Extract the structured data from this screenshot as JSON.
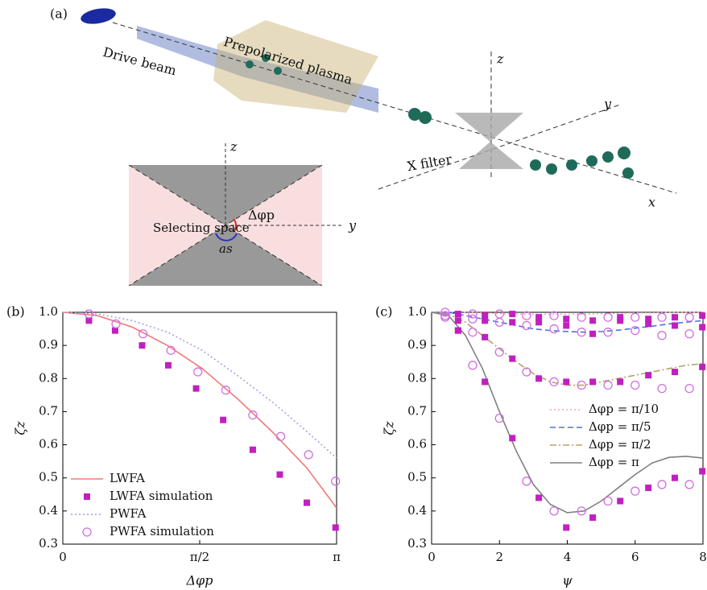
{
  "diagram": {
    "panel": "(a)",
    "plasma": "Prepolarized plasma",
    "beam": "Drive beam",
    "filter": "X filter",
    "axis_z": "z",
    "axis_y": "y",
    "axis_x": "x",
    "inset_z": "z",
    "inset_y": "y",
    "space": "Selecting space",
    "angle": "Δφp",
    "as": "as"
  },
  "chart_data": [
    {
      "type": "line",
      "panel": "(b)",
      "xlabel": "Δφp",
      "ylabel": "ζz",
      "legend": "lower left",
      "xlim": [
        0,
        3.1416
      ],
      "xticks": [
        0,
        {
          "value": 1.5708,
          "label": "π/2"
        },
        {
          "value": 3.1416,
          "label": "π"
        }
      ],
      "ylim": [
        0.3,
        1.0
      ],
      "yticks": [
        0.3,
        0.4,
        0.5,
        0.6,
        0.7,
        0.8,
        0.9,
        {
          "value": 1.0,
          "label": "1.0"
        }
      ],
      "series": [
        {
          "name": "LWFA",
          "color": "#f07878",
          "style": "solid",
          "x": [
            0,
            0.4,
            0.8,
            1.2,
            1.6,
            2.0,
            2.4,
            2.8,
            3.14
          ],
          "values": [
            1.0,
            0.99,
            0.955,
            0.9,
            0.83,
            0.74,
            0.64,
            0.53,
            0.41
          ]
        },
        {
          "name": "LWFA simulation",
          "color": "#c020c0",
          "marker": "square",
          "x": [
            0.3,
            0.6,
            0.91,
            1.21,
            1.53,
            1.84,
            2.18,
            2.49,
            2.8,
            3.13
          ],
          "values": [
            0.975,
            0.945,
            0.9,
            0.84,
            0.77,
            0.675,
            0.585,
            0.51,
            0.425,
            0.35
          ]
        },
        {
          "name": "PWFA",
          "color": "#a0a4e4",
          "style": "dotted",
          "x": [
            0,
            0.4,
            0.8,
            1.2,
            1.6,
            2.0,
            2.4,
            2.8,
            3.14
          ],
          "values": [
            1.0,
            0.995,
            0.975,
            0.94,
            0.885,
            0.81,
            0.73,
            0.64,
            0.56
          ]
        },
        {
          "name": "PWFA simulation",
          "color": "#d070e0",
          "marker": "circle",
          "x": [
            0.3,
            0.61,
            0.92,
            1.24,
            1.55,
            1.87,
            2.18,
            2.5,
            2.82,
            3.13
          ],
          "values": [
            0.995,
            0.965,
            0.935,
            0.885,
            0.82,
            0.765,
            0.69,
            0.625,
            0.57,
            0.49
          ]
        }
      ]
    },
    {
      "type": "line",
      "panel": "(c)",
      "xlabel": "ψ",
      "ylabel": "ζz",
      "legend": "center right",
      "xlim": [
        0,
        8
      ],
      "xticks": [
        0,
        2,
        4,
        6,
        8
      ],
      "ylim": [
        0.3,
        1.0
      ],
      "yticks": [
        0.3,
        0.4,
        0.5,
        0.6,
        0.7,
        0.8,
        0.9,
        {
          "value": 1.0,
          "label": "1.0"
        }
      ],
      "series": [
        {
          "name": "Δφp = π/10",
          "color": "#f0a8b8",
          "style": "dotted",
          "x": [
            0,
            0.5,
            1,
            1.5,
            2,
            2.5,
            3,
            3.5,
            4,
            4.5,
            5,
            5.5,
            6,
            6.5,
            7,
            7.5,
            8
          ],
          "values": [
            1,
            1,
            0.999,
            0.998,
            0.996,
            0.995,
            0.994,
            0.994,
            0.994,
            0.995,
            0.996,
            0.997,
            0.998,
            0.998,
            0.999,
            0.999,
            0.999
          ]
        },
        {
          "name": "Δφp = π/5",
          "color": "#5070e0",
          "style": "dashed",
          "x": [
            0,
            0.5,
            1,
            1.5,
            2,
            2.5,
            3,
            3.5,
            4,
            4.5,
            5,
            5.5,
            6,
            6.5,
            7,
            7.5,
            8
          ],
          "values": [
            1,
            1,
            0.99,
            0.98,
            0.97,
            0.96,
            0.95,
            0.945,
            0.942,
            0.94,
            0.942,
            0.946,
            0.952,
            0.958,
            0.965,
            0.97,
            0.975
          ]
        },
        {
          "name": "Δφp = π/2",
          "color": "#b8a070",
          "style": "dashdot",
          "x": [
            0,
            0.5,
            1,
            1.5,
            2,
            2.5,
            3,
            3.5,
            4,
            4.5,
            5,
            5.5,
            6,
            6.5,
            7,
            7.5,
            8
          ],
          "values": [
            1,
            0.995,
            0.97,
            0.93,
            0.89,
            0.85,
            0.815,
            0.79,
            0.78,
            0.78,
            0.79,
            0.8,
            0.81,
            0.82,
            0.83,
            0.84,
            0.845
          ]
        },
        {
          "name": "Δφp = π",
          "color": "#808080",
          "style": "solid",
          "x": [
            0,
            0.5,
            1,
            1.5,
            2,
            2.5,
            3,
            3.5,
            4,
            4.5,
            5,
            5.5,
            6,
            6.5,
            7,
            7.5,
            8
          ],
          "values": [
            1,
            0.99,
            0.93,
            0.83,
            0.7,
            0.58,
            0.48,
            0.42,
            0.395,
            0.4,
            0.43,
            0.47,
            0.51,
            0.545,
            0.562,
            0.565,
            0.56
          ]
        },
        {
          "color": "#c020c0",
          "marker": "square",
          "x": [
            0.78,
            1.57,
            2.38,
            3.16,
            3.97,
            4.75,
            5.56,
            6.39,
            7.17,
            7.98,
            0.78,
            1.57,
            2.38,
            3.16,
            3.97,
            4.75,
            5.56,
            6.39,
            7.17,
            7.98,
            0.78,
            1.57,
            2.38,
            3.16,
            3.97,
            4.75,
            5.56,
            6.39,
            7.17,
            7.98,
            0.78,
            1.57,
            2.38,
            3.16,
            3.97,
            4.75,
            5.56,
            6.39,
            7.17,
            7.98
          ],
          "values": [
            0.995,
            0.99,
            0.995,
            0.985,
            0.98,
            0.975,
            0.975,
            0.98,
            0.985,
            0.99,
            0.975,
            0.975,
            0.97,
            0.97,
            0.96,
            0.935,
            0.985,
            0.965,
            0.96,
            0.955,
            0.945,
            0.925,
            0.86,
            0.8,
            0.79,
            0.79,
            0.79,
            0.81,
            0.82,
            0.835,
            0.945,
            0.79,
            0.62,
            0.44,
            0.35,
            0.38,
            0.43,
            0.47,
            0.5,
            0.52
          ]
        },
        {
          "color": "#d070e0",
          "marker": "circle",
          "x": [
            0.4,
            1.21,
            2.0,
            2.8,
            3.61,
            4.42,
            5.2,
            6.0,
            6.79,
            7.6,
            0.4,
            1.21,
            2.0,
            2.8,
            3.61,
            4.42,
            5.2,
            6.0,
            6.79,
            7.6,
            0.4,
            1.21,
            2.0,
            2.8,
            3.61,
            4.42,
            5.2,
            6.0,
            6.79,
            7.6,
            0.4,
            1.21,
            2.0,
            2.8,
            3.61,
            4.42,
            5.2,
            6.0,
            6.79,
            7.6
          ],
          "values": [
            1.0,
            0.995,
            0.995,
            0.99,
            0.99,
            0.985,
            0.985,
            0.985,
            0.985,
            0.985,
            0.985,
            0.98,
            0.97,
            0.96,
            0.95,
            0.94,
            0.94,
            0.945,
            0.93,
            0.935,
            0.99,
            0.94,
            0.88,
            0.82,
            0.79,
            0.78,
            0.78,
            0.78,
            0.77,
            0.77,
            0.99,
            0.84,
            0.68,
            0.49,
            0.4,
            0.4,
            0.43,
            0.46,
            0.48,
            0.48
          ]
        }
      ]
    }
  ]
}
